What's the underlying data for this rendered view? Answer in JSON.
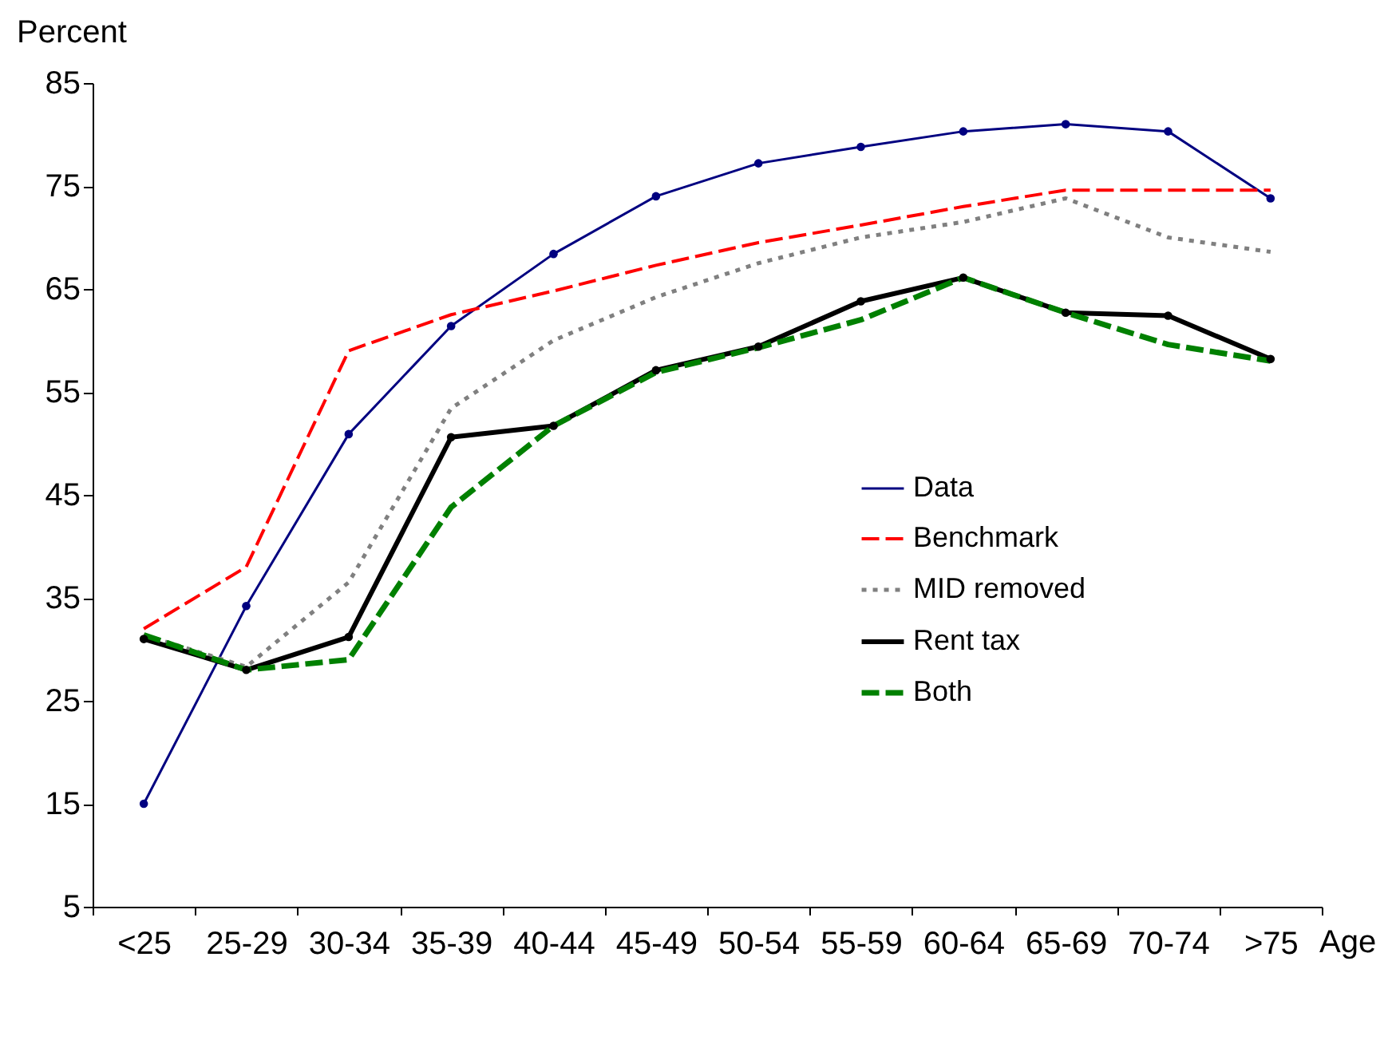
{
  "chart_data": {
    "type": "line",
    "ylabel": "Percent",
    "xlabel": "Age",
    "categories": [
      "<25",
      "25-29",
      "30-34",
      "35-39",
      "40-44",
      "45-49",
      "50-54",
      "55-59",
      "60-64",
      "65-69",
      "70-74",
      ">75"
    ],
    "ylim": [
      5,
      85
    ],
    "yticks": [
      5,
      15,
      25,
      35,
      45,
      55,
      65,
      75,
      85
    ],
    "grid": false,
    "legend": "right",
    "series": [
      {
        "name": "Data",
        "color": "#000080",
        "line_style": "solid",
        "marker": "circle",
        "values": [
          15,
          34.2,
          50.9,
          61.4,
          68.4,
          74,
          77.2,
          78.8,
          80.3,
          81,
          80.3,
          73.8
        ]
      },
      {
        "name": "Benchmark",
        "color": "#ff0000",
        "line_style": "dashed",
        "marker": "none",
        "values": [
          32,
          38,
          59,
          62.5,
          64.8,
          67.3,
          69.5,
          71.2,
          73,
          74.6,
          74.6,
          74.6
        ]
      },
      {
        "name": "MID removed",
        "color": "#808080",
        "line_style": "dotted",
        "marker": "none",
        "values": [
          31.4,
          28.3,
          36.5,
          53.4,
          60,
          64.2,
          67.5,
          70,
          71.5,
          73.8,
          70,
          68.6
        ]
      },
      {
        "name": "Rent tax",
        "color": "#000000",
        "line_style": "solid",
        "marker": "circle",
        "values": [
          31,
          28,
          31.2,
          50.6,
          51.7,
          57.1,
          59.4,
          63.8,
          66.1,
          62.7,
          62.4,
          58.2
        ]
      },
      {
        "name": "Both",
        "color": "#008000",
        "line_style": "dashed",
        "marker": "none",
        "values": [
          31.4,
          28,
          29,
          43.8,
          51.7,
          56.9,
          59.3,
          62,
          66.1,
          62.7,
          59.6,
          58
        ]
      }
    ]
  }
}
